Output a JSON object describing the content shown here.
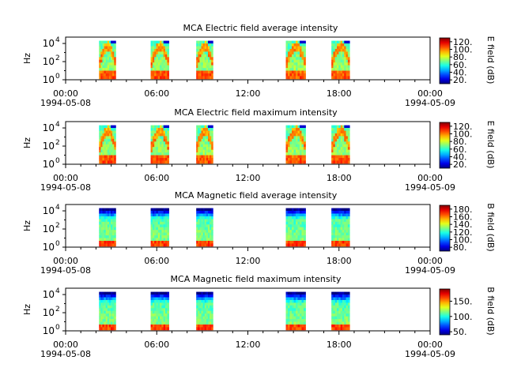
{
  "figure": {
    "time_axis": {
      "ticks": [
        {
          "time": "00:00",
          "date": "1994-05-08"
        },
        {
          "time": "06:00",
          "date": ""
        },
        {
          "time": "12:00",
          "date": ""
        },
        {
          "time": "18:00",
          "date": ""
        },
        {
          "time": "00:00",
          "date": "1994-05-09"
        }
      ],
      "minor_ticks_per_major": 6,
      "range_hours": [
        0,
        24
      ]
    },
    "freq_axis": {
      "label": "Hz",
      "ticks": [
        {
          "base": "10",
          "exp": "0"
        },
        {
          "base": "10",
          "exp": "2"
        },
        {
          "base": "10",
          "exp": "4"
        }
      ],
      "range_log10": [
        0,
        4.7
      ]
    }
  },
  "chart_data": [
    {
      "type": "heatmap",
      "title": "MCA  Electric field average intensity",
      "colorbar": {
        "label": "E field (dB)",
        "ticks": [
          "20.",
          "40.",
          "60.",
          "80.",
          "100.",
          "120."
        ],
        "range": [
          10,
          130
        ]
      },
      "palette": "electric",
      "data_intervals_hours": [
        [
          2.2,
          3.3
        ],
        [
          5.6,
          6.8
        ],
        [
          8.6,
          9.7
        ],
        [
          14.5,
          15.8
        ],
        [
          17.5,
          18.7
        ]
      ]
    },
    {
      "type": "heatmap",
      "title": "MCA  Electric field maximum intensity",
      "colorbar": {
        "label": "E field (dB)",
        "ticks": [
          "20.",
          "40.",
          "60.",
          "80.",
          "100.",
          "120."
        ],
        "range": [
          10,
          130
        ]
      },
      "palette": "electric",
      "data_intervals_hours": [
        [
          2.2,
          3.3
        ],
        [
          5.6,
          6.8
        ],
        [
          8.6,
          9.7
        ],
        [
          14.5,
          15.8
        ],
        [
          17.5,
          18.7
        ]
      ]
    },
    {
      "type": "heatmap",
      "title": "MCA  Magnetic field average intensity",
      "colorbar": {
        "label": "B field (dB)",
        "ticks": [
          "80.",
          "100.",
          "120.",
          "140.",
          "160.",
          "180."
        ],
        "range": [
          70,
          190
        ]
      },
      "palette": "magnetic",
      "data_intervals_hours": [
        [
          2.2,
          3.3
        ],
        [
          5.6,
          6.8
        ],
        [
          8.6,
          9.7
        ],
        [
          14.5,
          15.8
        ],
        [
          17.5,
          18.7
        ]
      ]
    },
    {
      "type": "heatmap",
      "title": "MCA  Magnetic field maximum intensity",
      "colorbar": {
        "label": "B field (dB)",
        "ticks": [
          "50.",
          "100.",
          "150."
        ],
        "range": [
          40,
          190
        ]
      },
      "palette": "magnetic",
      "data_intervals_hours": [
        [
          2.2,
          3.3
        ],
        [
          5.6,
          6.8
        ],
        [
          8.6,
          9.7
        ],
        [
          14.5,
          15.8
        ],
        [
          17.5,
          18.7
        ]
      ]
    }
  ]
}
